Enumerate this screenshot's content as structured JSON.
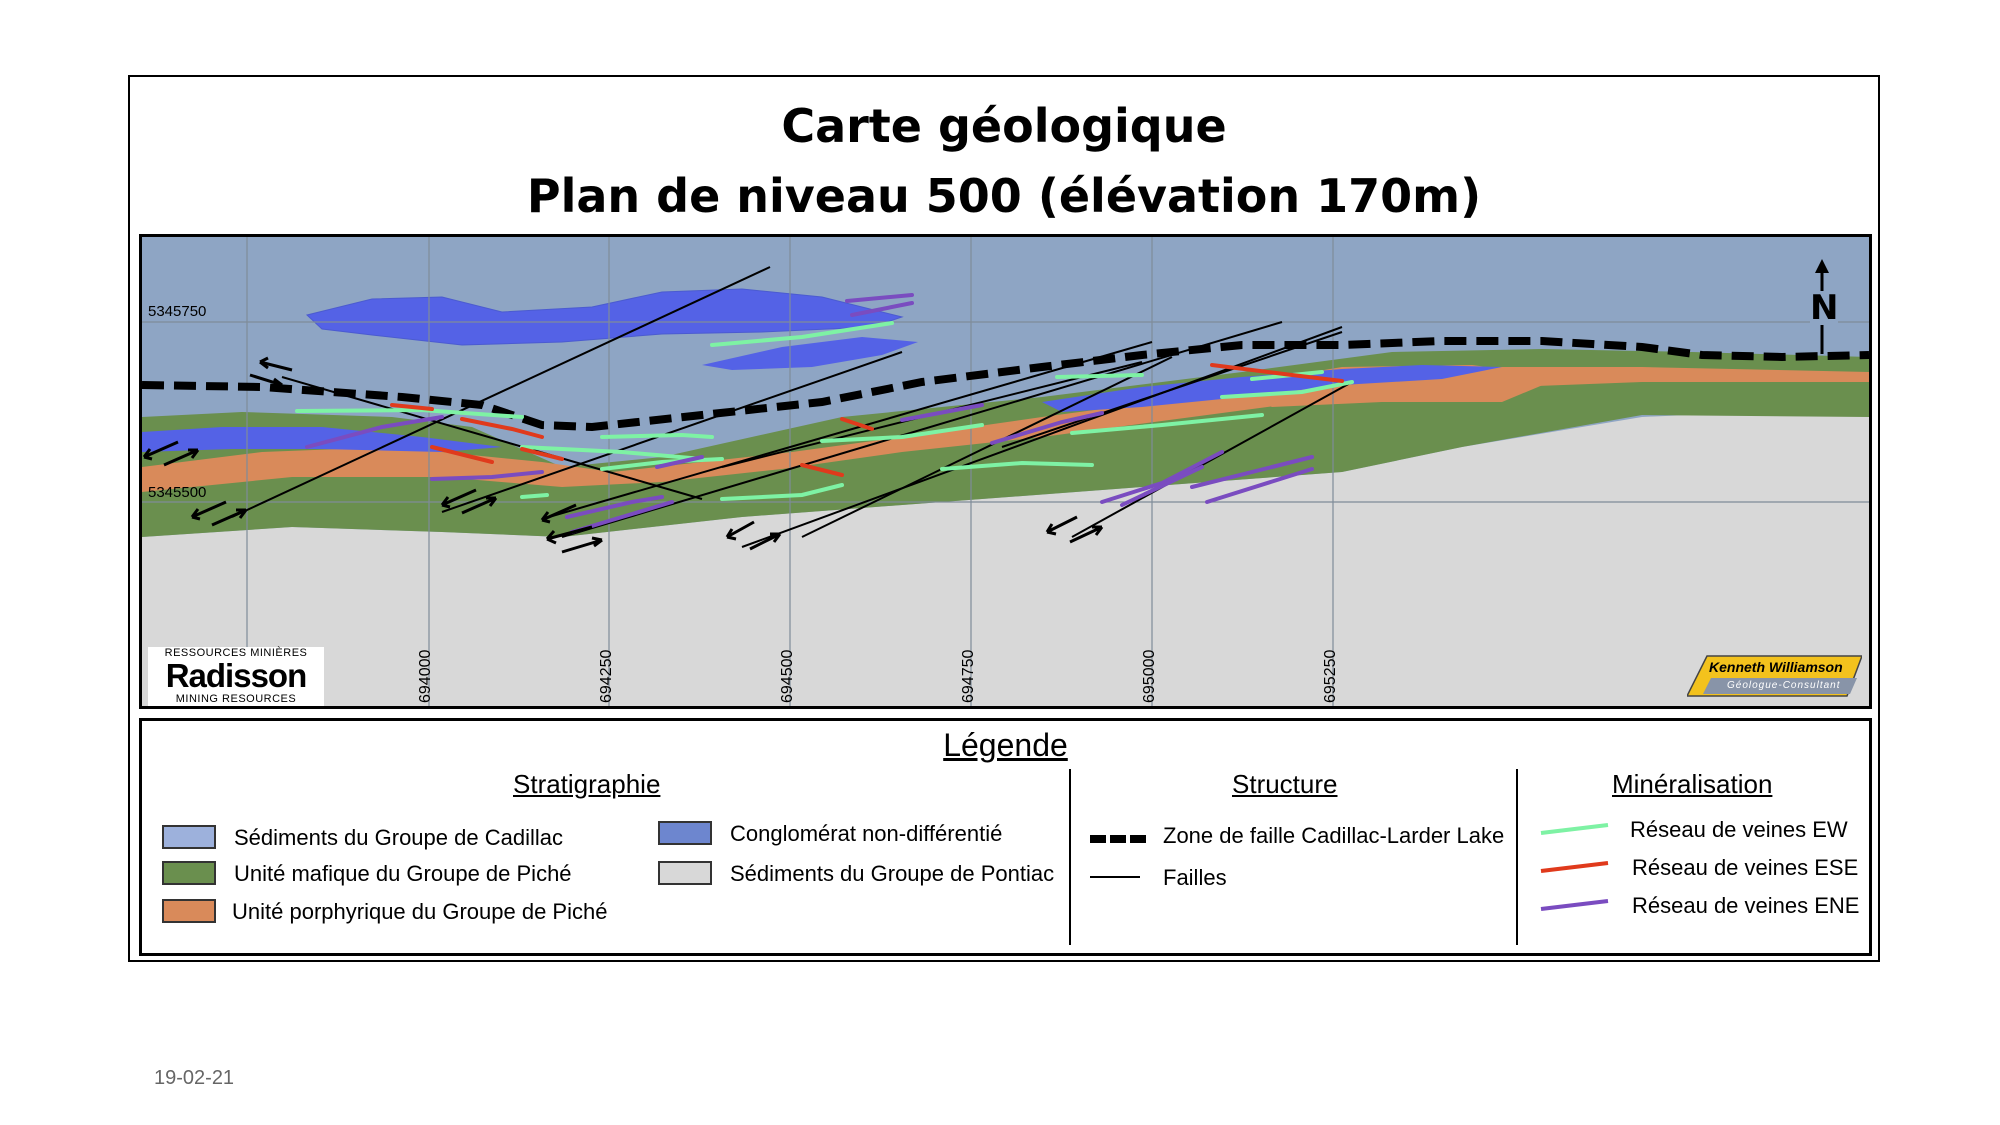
{
  "title": {
    "line1": "Carte géologique",
    "line2": "Plan de niveau 500 (élévation 170m)"
  },
  "map": {
    "northing_labels": [
      "5345750",
      "5345500"
    ],
    "easting_labels": [
      "694000",
      "694250",
      "694500",
      "694750",
      "695000",
      "695250"
    ],
    "north_label": "N",
    "colors": {
      "cadillac": "#8ea5c4",
      "piche_mafic": "#6a8f4e",
      "piche_porphyry": "#d98a5a",
      "conglomerate": "#5462e6",
      "pontiac": "#d8d8d8",
      "veins_ew": "#7ef2a4",
      "veins_ese": "#e03a1c",
      "veins_ene": "#7a4cc0"
    }
  },
  "logos": {
    "radisson_top": "RESSOURCES MINIÈRES",
    "radisson_name": "Radisson",
    "radisson_bottom": "MINING RESOURCES",
    "kw_name": "Kenneth Williamson",
    "kw_sub": "Géologue-Consultant"
  },
  "legend": {
    "title": "Légende",
    "stratigraphy": {
      "heading": "Stratigraphie",
      "items": [
        {
          "label": "Sédiments du Groupe de Cadillac",
          "color": "#9db1dc"
        },
        {
          "label": "Unité mafique du Groupe de Piché",
          "color": "#6a8f4e"
        },
        {
          "label": "Unité porphyrique du Groupe de Piché",
          "color": "#d98a5a"
        },
        {
          "label": "Conglomérat non-différentié",
          "color": "#6d86cf"
        },
        {
          "label": "Sédiments du Groupe de Pontiac",
          "color": "#d8d8d8"
        }
      ]
    },
    "structure": {
      "heading": "Structure",
      "items": [
        {
          "label": "Zone de faille Cadillac-Larder Lake"
        },
        {
          "label": "Failles"
        }
      ]
    },
    "mineralisation": {
      "heading": "Minéralisation",
      "items": [
        {
          "label": "Réseau de veines EW",
          "color": "#7ef2a4"
        },
        {
          "label": "Réseau de veines ESE",
          "color": "#e03a1c"
        },
        {
          "label": "Réseau de veines ENE",
          "color": "#7a4cc0"
        }
      ]
    }
  },
  "footer": {
    "date": "19-02-21"
  }
}
